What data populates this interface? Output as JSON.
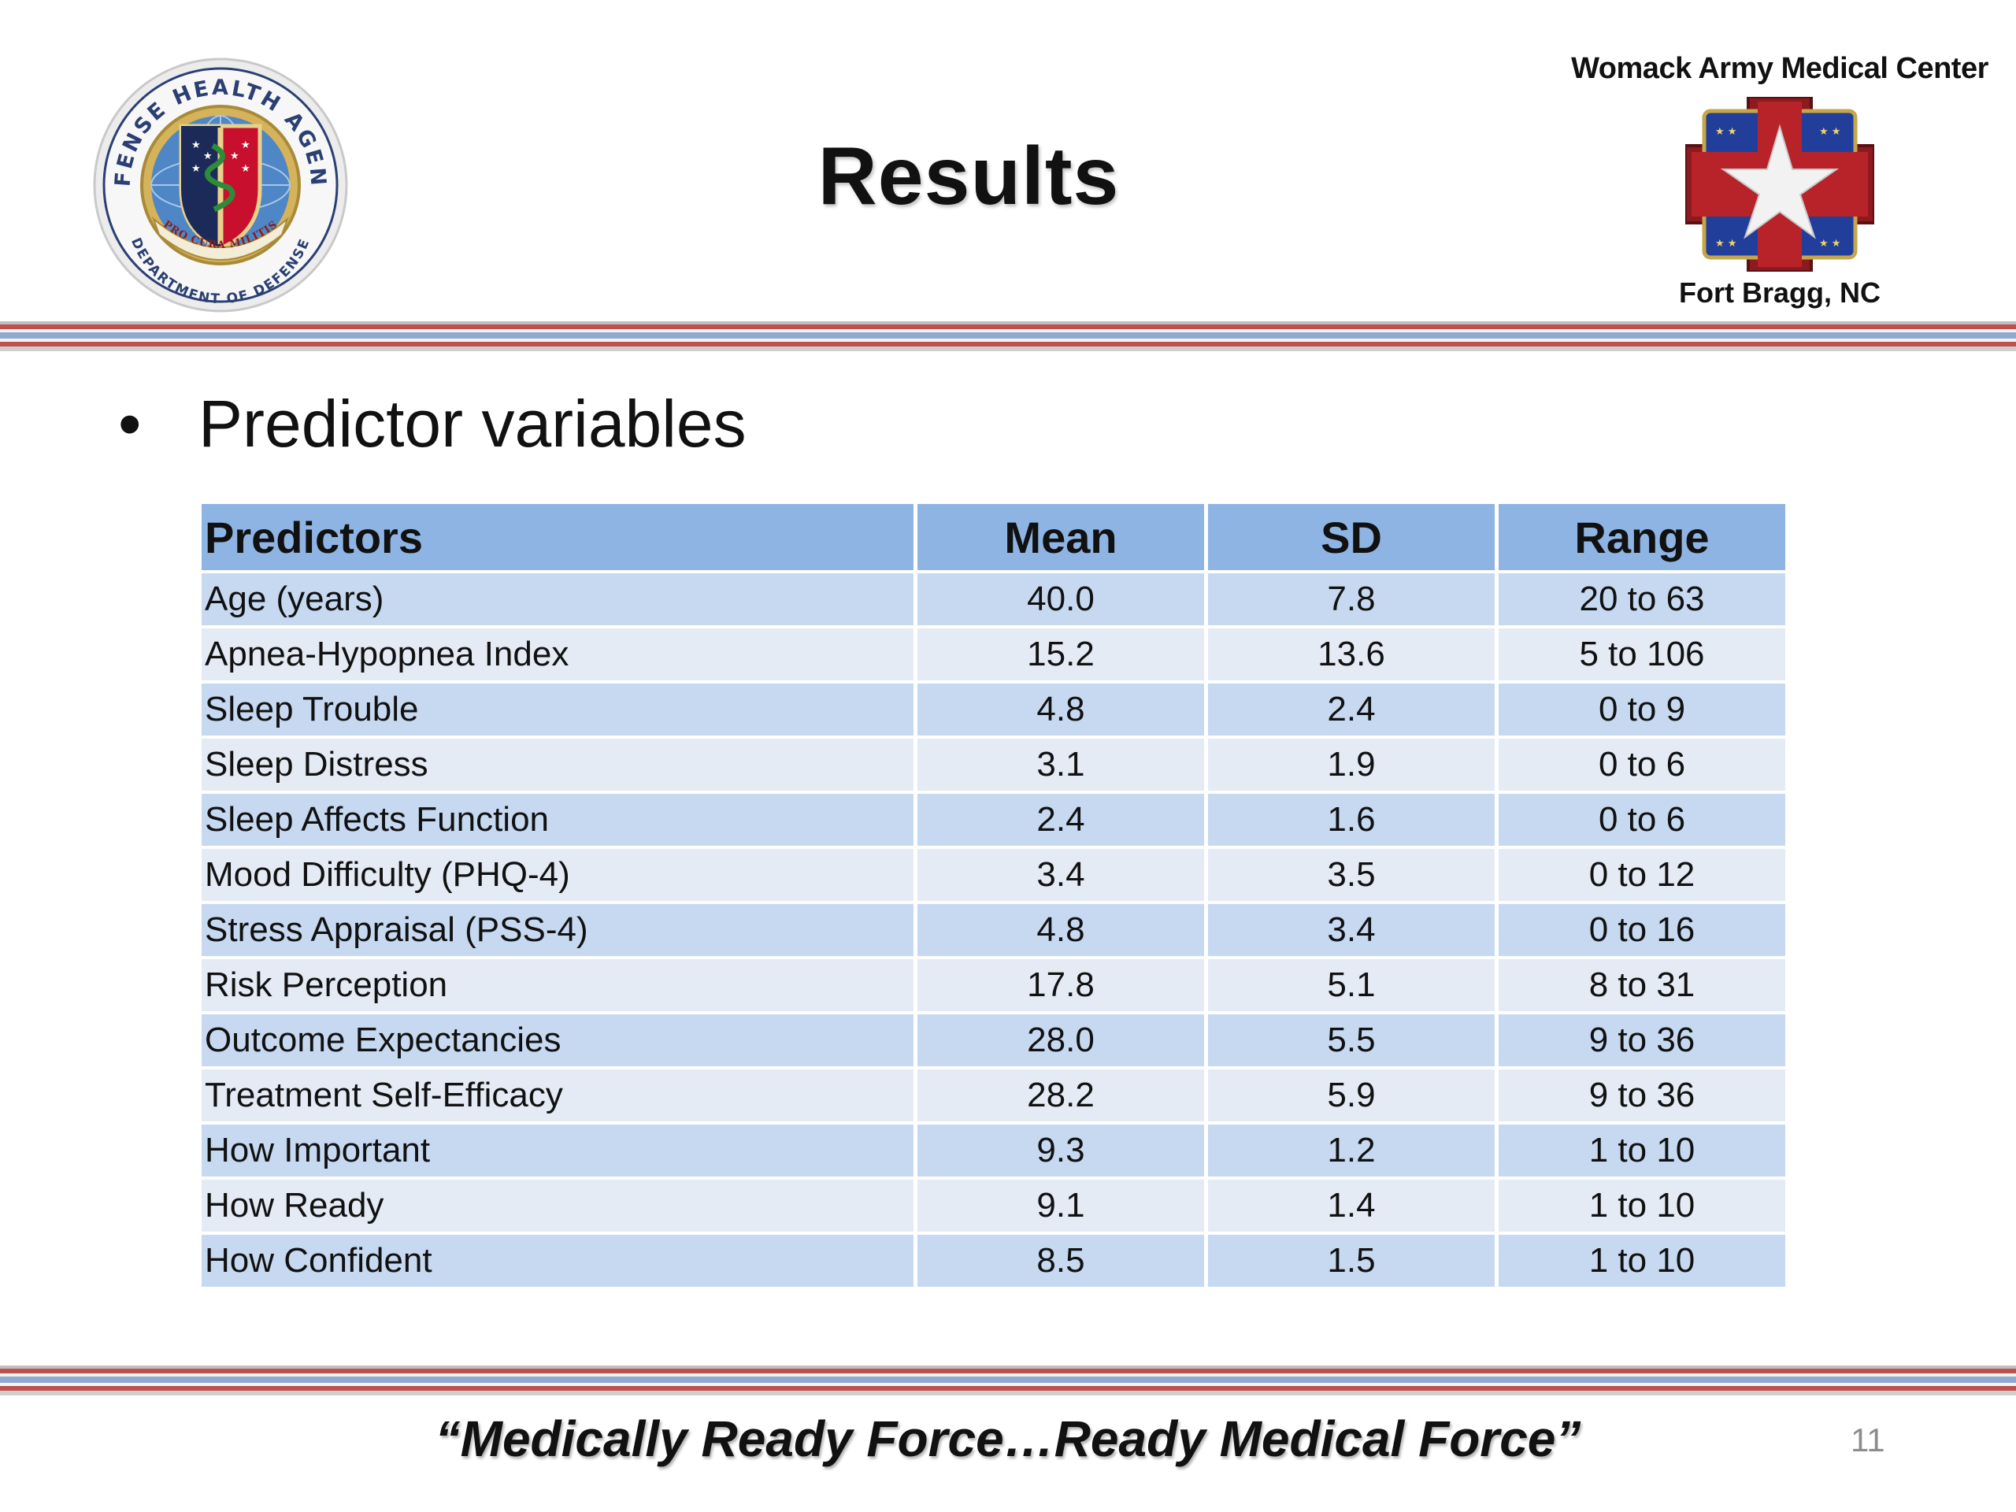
{
  "header": {
    "title": "Results",
    "left_logo": {
      "name": "defense-health-agency-seal",
      "ring_text_top": "DEFENSE HEALTH AGENCY",
      "ring_text_bottom": "DEPARTMENT OF DEFENSE",
      "ribbon_text": "PRO CURA MILITIS"
    },
    "right_logo": {
      "org_name": "Womack Army Medical Center",
      "location": "Fort Bragg, NC"
    }
  },
  "content": {
    "bullet": "Predictor variables",
    "table": {
      "columns": [
        "Predictors",
        "Mean",
        "SD",
        "Range"
      ],
      "rows": [
        [
          "Age (years)",
          "40.0",
          "7.8",
          "20 to 63"
        ],
        [
          "Apnea-Hypopnea Index",
          "15.2",
          "13.6",
          "5 to 106"
        ],
        [
          "Sleep Trouble",
          "4.8",
          "2.4",
          "0 to 9"
        ],
        [
          "Sleep Distress",
          "3.1",
          "1.9",
          "0 to 6"
        ],
        [
          "Sleep Affects Function",
          "2.4",
          "1.6",
          "0 to 6"
        ],
        [
          "Mood Difficulty (PHQ-4)",
          "3.4",
          "3.5",
          "0 to 12"
        ],
        [
          "Stress Appraisal (PSS-4)",
          "4.8",
          "3.4",
          "0 to 16"
        ],
        [
          "Risk Perception",
          "17.8",
          "5.1",
          "8 to 31"
        ],
        [
          "Outcome Expectancies",
          "28.0",
          "5.5",
          "9 to 36"
        ],
        [
          "Treatment Self-Efficacy",
          "28.2",
          "5.9",
          "9 to 36"
        ],
        [
          "How Important",
          "9.3",
          "1.2",
          "1 to 10"
        ],
        [
          "How Ready",
          "9.1",
          "1.4",
          "1 to 10"
        ],
        [
          "How Confident",
          "8.5",
          "1.5",
          "1 to 10"
        ]
      ]
    }
  },
  "footer": {
    "motto": "“Medically Ready Force…Ready Medical Force”",
    "page_number": "11"
  },
  "colors": {
    "header_row": "#8eb4e3",
    "row_odd": "#c6d9f1",
    "row_even": "#e4ebf5",
    "stripe_red": "#c0504d",
    "stripe_blue": "#8fa9cf"
  }
}
